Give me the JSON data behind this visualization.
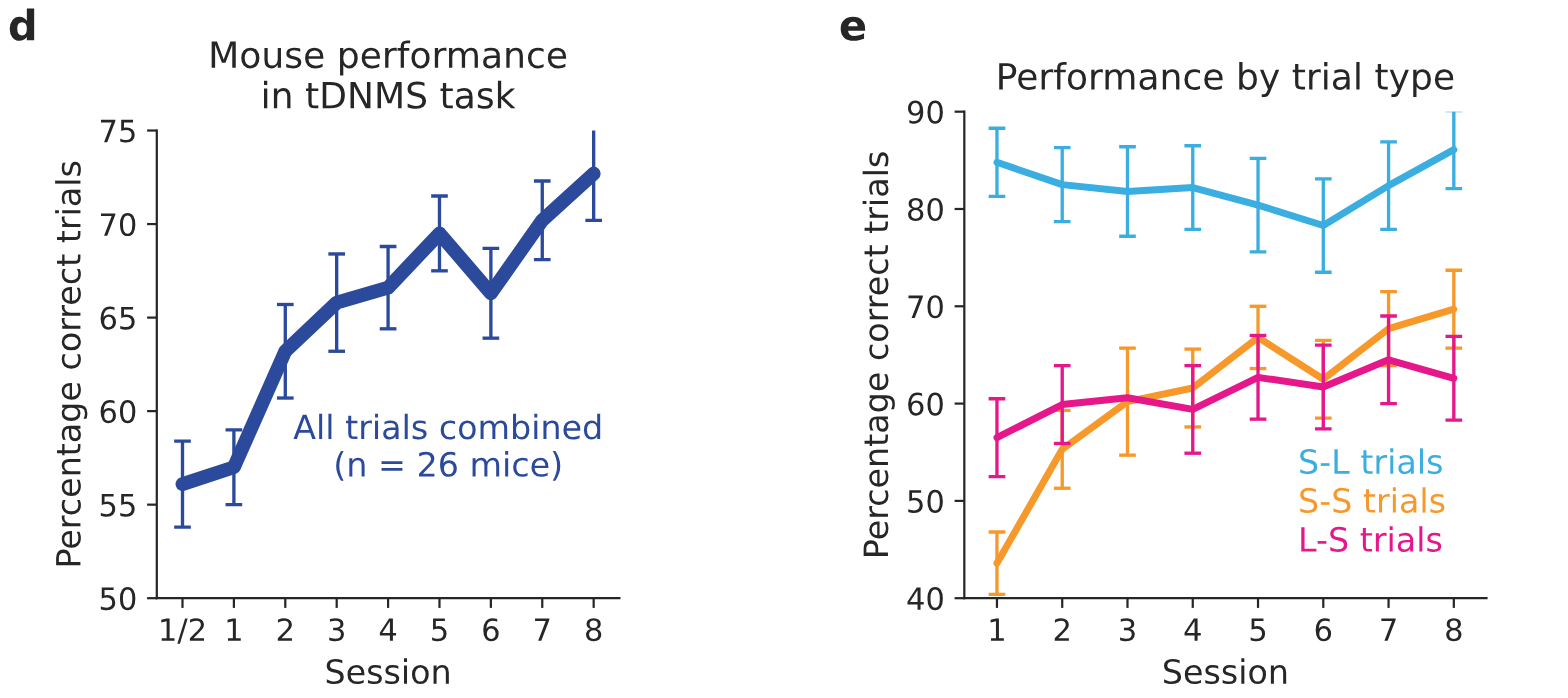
{
  "chart_data": [
    {
      "type": "line",
      "title": "Mouse performance\nin tDNMS task",
      "xlabel": "Session",
      "ylabel": "Percentage correct trials",
      "categories": [
        "1/2",
        "1",
        "2",
        "3",
        "4",
        "5",
        "6",
        "7",
        "8"
      ],
      "ylim": [
        50,
        75
      ],
      "yticks": [
        50,
        55,
        60,
        65,
        70,
        75
      ],
      "grid": false,
      "legend": false,
      "series": [
        {
          "color": "#2b4a9b",
          "values": [
            56.1,
            57.0,
            63.2,
            65.8,
            66.6,
            69.5,
            66.3,
            70.2,
            72.7
          ],
          "errors": [
            2.3,
            2.0,
            2.5,
            2.6,
            2.2,
            2.0,
            2.4,
            2.1,
            2.5
          ]
        }
      ],
      "annotations": [
        "d",
        "All trials combined\n(n = 26 mice)"
      ]
    },
    {
      "type": "line",
      "title": "Performance by trial type",
      "xlabel": "Session",
      "ylabel": "Percentage correct trials",
      "categories": [
        "1",
        "2",
        "3",
        "4",
        "5",
        "6",
        "7",
        "8"
      ],
      "ylim": [
        40,
        90
      ],
      "yticks": [
        40,
        50,
        60,
        70,
        80,
        90
      ],
      "grid": false,
      "legend": "bottom right",
      "series": [
        {
          "name": "S-L trials",
          "color": "#3aaee0",
          "values": [
            84.8,
            82.5,
            81.8,
            82.2,
            80.4,
            78.3,
            82.4,
            86.1
          ],
          "errors": [
            3.5,
            3.8,
            4.6,
            4.3,
            4.8,
            4.8,
            4.5,
            4.0
          ]
        },
        {
          "name": "S-S trials",
          "color": "#f7982a",
          "values": [
            43.6,
            55.3,
            60.2,
            61.6,
            66.8,
            62.5,
            67.7,
            69.7
          ],
          "errors": [
            3.2,
            4.0,
            5.5,
            4.0,
            3.2,
            4.0,
            3.8,
            4.0
          ]
        },
        {
          "name": "L-S trials",
          "color": "#e6178b",
          "values": [
            56.5,
            59.9,
            60.6,
            59.4,
            62.7,
            61.7,
            64.5,
            62.6
          ],
          "errors": [
            4.0,
            4.0,
            null,
            4.5,
            4.3,
            4.3,
            4.5,
            4.3
          ]
        }
      ],
      "annotations": [
        "e"
      ]
    }
  ]
}
